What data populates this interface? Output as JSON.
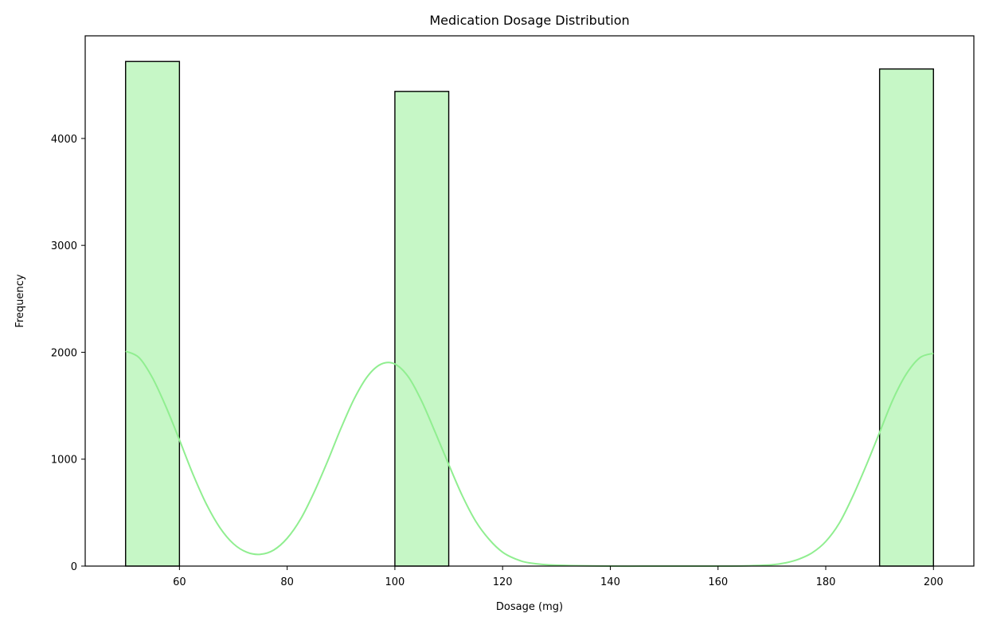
{
  "chart_data": {
    "type": "bar",
    "title": "Medication Dosage Distribution",
    "xlabel": "Dosage (mg)",
    "ylabel": "Frequency",
    "xlim": [
      42.5,
      207.5
    ],
    "ylim": [
      0,
      4960
    ],
    "xticks": [
      60,
      80,
      100,
      120,
      140,
      160,
      180,
      200
    ],
    "yticks": [
      0,
      1000,
      2000,
      3000,
      4000
    ],
    "bins": [
      {
        "start": 50,
        "end": 60,
        "count": 4720
      },
      {
        "start": 100,
        "end": 110,
        "count": 4440
      },
      {
        "start": 190,
        "end": 200,
        "count": 4650
      }
    ],
    "kde": {
      "x": [
        50,
        52.5,
        55,
        57.5,
        60,
        62.5,
        65,
        67.5,
        70,
        72.5,
        75,
        77.5,
        80,
        82.5,
        85,
        87.5,
        90,
        92.5,
        95,
        97.5,
        100,
        102.5,
        105,
        107.5,
        110,
        112.5,
        115,
        117.5,
        120,
        122.5,
        125,
        130,
        140,
        150,
        160,
        165,
        170,
        172.5,
        175,
        177.5,
        180,
        182.5,
        185,
        187.5,
        190,
        192.5,
        195,
        197.5,
        200
      ],
      "y": [
        2010,
        1950,
        1760,
        1490,
        1180,
        860,
        580,
        360,
        210,
        130,
        110,
        150,
        260,
        440,
        690,
        980,
        1290,
        1570,
        1780,
        1890,
        1890,
        1770,
        1540,
        1250,
        950,
        660,
        420,
        250,
        130,
        65,
        30,
        8,
        0,
        0,
        0,
        2,
        12,
        30,
        65,
        125,
        230,
        400,
        650,
        940,
        1250,
        1560,
        1800,
        1950,
        1990
      ]
    },
    "bar_fill": "#c6f7c6",
    "bar_edge": "#000000",
    "kde_color": "#90ee90",
    "grid": false,
    "legend": "none"
  }
}
